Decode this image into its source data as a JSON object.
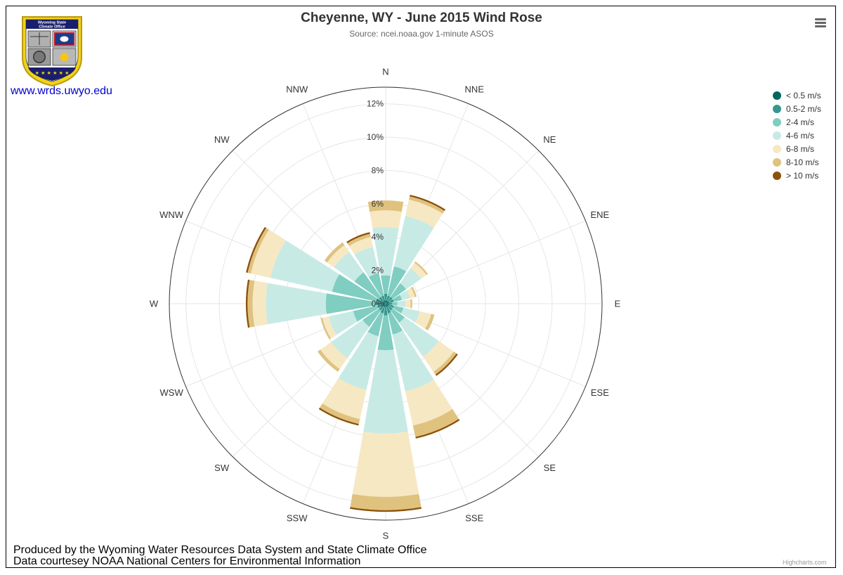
{
  "header": {
    "title": "Cheyenne, WY - June 2015 Wind Rose",
    "subtitle": "Source: ncei.noaa.gov 1-minute ASOS"
  },
  "logo": {
    "text_line1": "Wyoming State",
    "text_line2": "Climate Office",
    "link": "www.wrds.uwyo.edu"
  },
  "footer": {
    "line1": "Produced by the Wyoming Water Resources Data System and State Climate Office",
    "line2": "Data courtesey NOAA National Centers for Environmental Information",
    "credit": "Highcharts.com"
  },
  "chart_data": {
    "type": "bar",
    "polar": true,
    "stacking": "normal",
    "title": "Cheyenne, WY - June 2015 Wind Rose",
    "subtitle": "Source: ncei.noaa.gov 1-minute ASOS",
    "categories": [
      "N",
      "NNE",
      "NE",
      "ENE",
      "E",
      "ESE",
      "SE",
      "SSE",
      "S",
      "SSW",
      "SW",
      "WSW",
      "W",
      "WNW",
      "NW",
      "NNW"
    ],
    "y_tick_labels": [
      "0%",
      "2%",
      "4%",
      "6%",
      "8%",
      "10%",
      "12%"
    ],
    "ylim": [
      0,
      13
    ],
    "grid": true,
    "legend_position": "right",
    "series": [
      {
        "name": "< 0.5 m/s",
        "color": "#01665e",
        "values": [
          0.2,
          0.2,
          0.2,
          0.2,
          0.2,
          0.2,
          0.2,
          0.2,
          0.2,
          0.2,
          0.2,
          0.2,
          0.2,
          0.2,
          0.2,
          0.2
        ]
      },
      {
        "name": "0.5-2 m/s",
        "color": "#35978f",
        "values": [
          0.4,
          0.3,
          0.3,
          0.3,
          0.2,
          0.3,
          0.3,
          0.4,
          0.5,
          0.4,
          0.3,
          0.3,
          0.4,
          0.4,
          0.3,
          0.3
        ]
      },
      {
        "name": "2-4 m/s",
        "color": "#80cdc1",
        "values": [
          1.1,
          1.8,
          1.0,
          0.5,
          0.3,
          0.6,
          0.9,
          1.3,
          2.1,
          1.4,
          1.2,
          1.5,
          3.0,
          2.7,
          1.8,
          1.4
        ]
      },
      {
        "name": "4-6 m/s",
        "color": "#c7eae5",
        "values": [
          2.9,
          3.1,
          1.1,
          0.5,
          0.5,
          1.0,
          2.5,
          3.5,
          5.0,
          3.3,
          2.3,
          1.5,
          3.6,
          3.8,
          1.5,
          1.6
        ]
      },
      {
        "name": "6-8 m/s",
        "color": "#f6e8c3",
        "values": [
          1.0,
          1.0,
          0.4,
          0.3,
          0.3,
          0.7,
          1.1,
          2.1,
          3.8,
          1.8,
          0.8,
          0.4,
          0.8,
          1.2,
          0.5,
          0.6
        ]
      },
      {
        "name": "8-10 m/s",
        "color": "#dfc27d",
        "values": [
          0.6,
          0.2,
          0.1,
          0.1,
          0.1,
          0.2,
          0.2,
          0.7,
          0.8,
          0.3,
          0.2,
          0.1,
          0.3,
          0.2,
          0.2,
          0.2
        ]
      },
      {
        "name": "> 10 m/s",
        "color": "#8c510a",
        "values": [
          0.0,
          0.1,
          0.0,
          0.0,
          0.0,
          0.0,
          0.1,
          0.1,
          0.1,
          0.1,
          0.0,
          0.0,
          0.1,
          0.1,
          0.0,
          0.1
        ]
      }
    ]
  }
}
